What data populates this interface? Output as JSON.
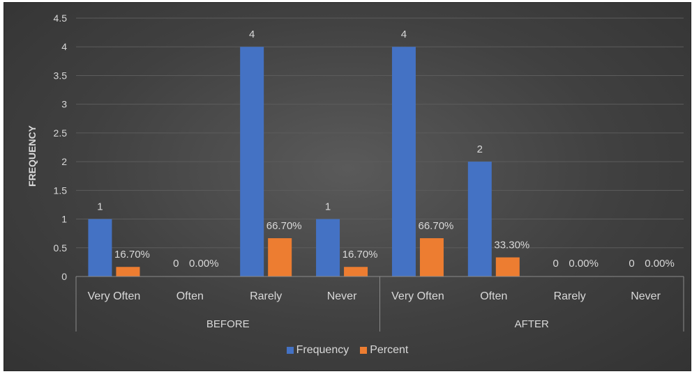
{
  "chart_data": {
    "type": "bar",
    "ylabel": "FREQUENCY",
    "ylim": [
      0,
      4.5
    ],
    "yticks": [
      "0",
      "0.5",
      "1",
      "1.5",
      "2",
      "2.5",
      "3",
      "3.5",
      "4",
      "4.5"
    ],
    "groups": [
      {
        "label": "BEFORE",
        "categories": [
          "Very Often",
          "Often",
          "Rarely",
          "Never"
        ]
      },
      {
        "label": "AFTER",
        "categories": [
          "Very Often",
          "Often",
          "Rarely",
          "Never"
        ]
      }
    ],
    "series": [
      {
        "name": "Frequency",
        "color": "#4472c4",
        "values": [
          1,
          0,
          4,
          1,
          4,
          2,
          0,
          0
        ],
        "labels": [
          "1",
          "0",
          "4",
          "1",
          "4",
          "2",
          "0",
          "0"
        ]
      },
      {
        "name": "Percent",
        "color": "#ed7d31",
        "values": [
          0.167,
          0,
          0.667,
          0.167,
          0.667,
          0.333,
          0,
          0
        ],
        "labels": [
          "16.70%",
          "0.00%",
          "66.70%",
          "16.70%",
          "66.70%",
          "33.30%",
          "0.00%",
          "0.00%"
        ]
      }
    ],
    "legend_position": "bottom",
    "grid": true
  }
}
